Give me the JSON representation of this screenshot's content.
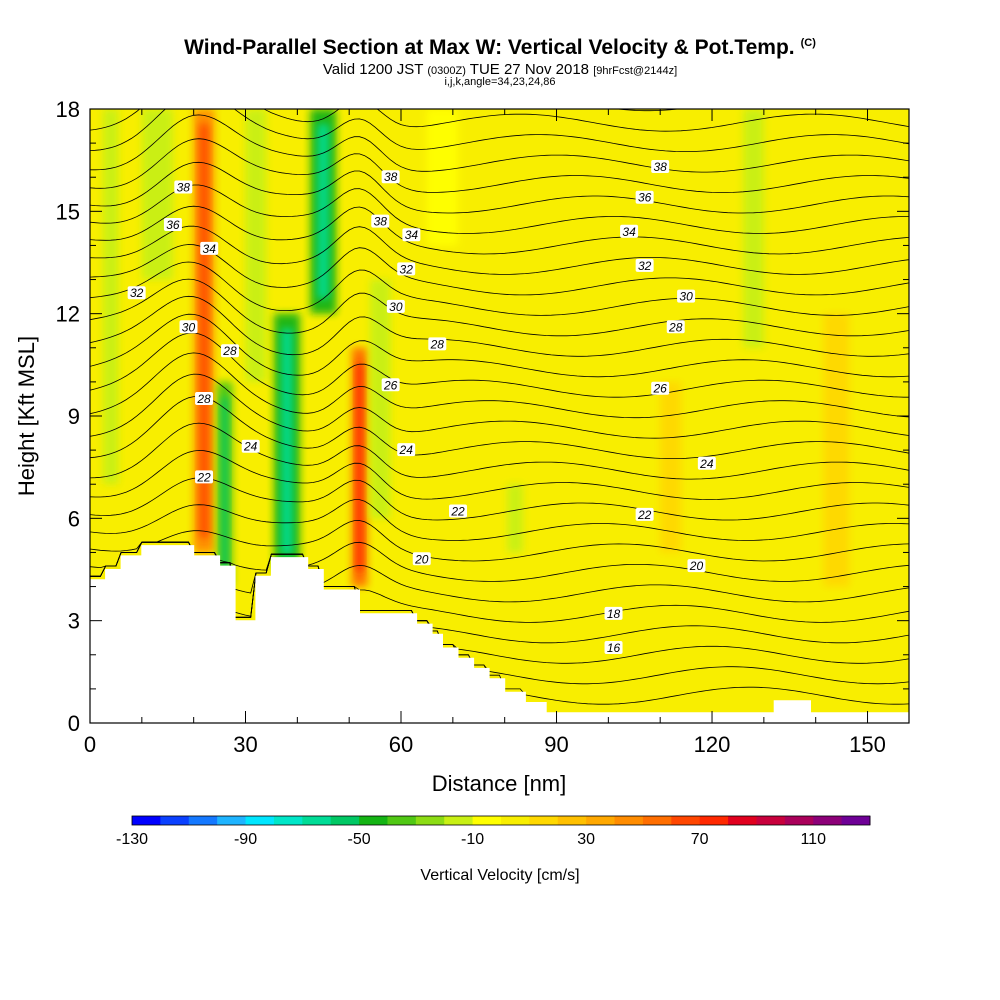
{
  "header": {
    "title": "Wind-Parallel Section at Max W: Vertical Velocity & Pot.Temp.",
    "copyright": "(C)",
    "valid_prefix": "Valid 1200 JST",
    "valid_utc": "(0300Z)",
    "valid_date": "TUE 27 Nov 2018",
    "forecast_info": "[9hrFcst@2144z]",
    "indices": "i,j,k,angle=34,23,24,86"
  },
  "chart_data": {
    "type": "heatmap",
    "title": "Wind-Parallel Section at Max W: Vertical Velocity & Pot.Temp.",
    "xlabel": "Distance [nm]",
    "ylabel": "Height [Kft MSL]",
    "xlim": [
      0,
      158
    ],
    "ylim": [
      0,
      18
    ],
    "x_ticks": [
      0,
      30,
      60,
      90,
      120,
      150
    ],
    "y_ticks": [
      0,
      3,
      6,
      9,
      12,
      15,
      18
    ],
    "grid": false,
    "terrain": [
      [
        0,
        4.2
      ],
      [
        3,
        4.2
      ],
      [
        3,
        4.5
      ],
      [
        6,
        4.5
      ],
      [
        6,
        4.9
      ],
      [
        10,
        4.9
      ],
      [
        10,
        5.2
      ],
      [
        20,
        5.2
      ],
      [
        20,
        4.9
      ],
      [
        25,
        4.9
      ],
      [
        25,
        4.6
      ],
      [
        28,
        4.6
      ],
      [
        28,
        3
      ],
      [
        32,
        3
      ],
      [
        32,
        4.3
      ],
      [
        35,
        4.3
      ],
      [
        35,
        4.85
      ],
      [
        42,
        4.85
      ],
      [
        42,
        4.5
      ],
      [
        45,
        4.5
      ],
      [
        45,
        3.9
      ],
      [
        52,
        3.9
      ],
      [
        52,
        3.2
      ],
      [
        63,
        3.2
      ],
      [
        63,
        2.9
      ],
      [
        66,
        2.9
      ],
      [
        66,
        2.6
      ],
      [
        68,
        2.6
      ],
      [
        68,
        2.2
      ],
      [
        71,
        2.2
      ],
      [
        71,
        1.9
      ],
      [
        74,
        1.9
      ],
      [
        74,
        1.6
      ],
      [
        77,
        1.6
      ],
      [
        77,
        1.3
      ],
      [
        80,
        1.3
      ],
      [
        80,
        0.9
      ],
      [
        84,
        0.9
      ],
      [
        84,
        0.6
      ],
      [
        88,
        0.6
      ],
      [
        88,
        0.3
      ],
      [
        132,
        0.3
      ],
      [
        132,
        0.65
      ],
      [
        139,
        0.65
      ],
      [
        139,
        0.3
      ],
      [
        158,
        0.3
      ]
    ],
    "vertical_velocity_features": [
      {
        "x": 4,
        "y0": 7,
        "y1": 18,
        "width": 3,
        "value": -20
      },
      {
        "x": 13,
        "y0": 13,
        "y1": 18,
        "width": 6,
        "value": -15
      },
      {
        "x": 22,
        "y0": 5,
        "y1": 18,
        "width": 4,
        "value": 40
      },
      {
        "x": 26,
        "y0": 4,
        "y1": 10,
        "width": 3,
        "value": -40
      },
      {
        "x": 32,
        "y0": 10,
        "y1": 18,
        "width": 4,
        "value": -20
      },
      {
        "x": 38,
        "y0": 4.5,
        "y1": 12,
        "width": 5,
        "value": -50
      },
      {
        "x": 45,
        "y0": 12,
        "y1": 18,
        "width": 5,
        "value": -50
      },
      {
        "x": 52,
        "y0": 4,
        "y1": 11,
        "width": 3,
        "value": 50
      },
      {
        "x": 56,
        "y0": 6,
        "y1": 13,
        "width": 4,
        "value": -20
      },
      {
        "x": 68,
        "y0": 14,
        "y1": 18,
        "width": 6,
        "value": -10
      },
      {
        "x": 82,
        "y0": 5,
        "y1": 7,
        "width": 3,
        "value": -20
      },
      {
        "x": 112,
        "y0": 5,
        "y1": 10,
        "width": 4,
        "value": 10
      },
      {
        "x": 128,
        "y0": 11,
        "y1": 18,
        "width": 4,
        "value": -20
      },
      {
        "x": 144,
        "y0": 4,
        "y1": 12,
        "width": 5,
        "value": 10
      }
    ],
    "theta_contours_labeled": [
      16,
      18,
      20,
      22,
      24,
      26,
      28,
      30,
      32,
      34,
      36,
      38
    ],
    "contour_labels": [
      {
        "text": "38",
        "x": 18,
        "y": 15.7
      },
      {
        "text": "36",
        "x": 16,
        "y": 14.6
      },
      {
        "text": "34",
        "x": 23,
        "y": 13.9
      },
      {
        "text": "32",
        "x": 9,
        "y": 12.6
      },
      {
        "text": "30",
        "x": 19,
        "y": 11.6
      },
      {
        "text": "28",
        "x": 27,
        "y": 10.9
      },
      {
        "text": "28",
        "x": 22,
        "y": 9.5
      },
      {
        "text": "24",
        "x": 31,
        "y": 8.1
      },
      {
        "text": "22",
        "x": 22,
        "y": 7.2
      },
      {
        "text": "38",
        "x": 58,
        "y": 16.0
      },
      {
        "text": "38",
        "x": 56,
        "y": 14.7
      },
      {
        "text": "34",
        "x": 62,
        "y": 14.3
      },
      {
        "text": "32",
        "x": 61,
        "y": 13.3
      },
      {
        "text": "30",
        "x": 59,
        "y": 12.2
      },
      {
        "text": "28",
        "x": 67,
        "y": 11.1
      },
      {
        "text": "26",
        "x": 58,
        "y": 9.9
      },
      {
        "text": "24",
        "x": 61,
        "y": 8.0
      },
      {
        "text": "22",
        "x": 71,
        "y": 6.2
      },
      {
        "text": "20",
        "x": 64,
        "y": 4.8
      },
      {
        "text": "38",
        "x": 110,
        "y": 16.3
      },
      {
        "text": "36",
        "x": 107,
        "y": 15.4
      },
      {
        "text": "34",
        "x": 104,
        "y": 14.4
      },
      {
        "text": "32",
        "x": 107,
        "y": 13.4
      },
      {
        "text": "30",
        "x": 115,
        "y": 12.5
      },
      {
        "text": "28",
        "x": 113,
        "y": 11.6
      },
      {
        "text": "26",
        "x": 110,
        "y": 9.8
      },
      {
        "text": "24",
        "x": 119,
        "y": 7.6
      },
      {
        "text": "22",
        "x": 107,
        "y": 6.1
      },
      {
        "text": "20",
        "x": 117,
        "y": 4.6
      },
      {
        "text": "18",
        "x": 101,
        "y": 3.2
      },
      {
        "text": "16",
        "x": 101,
        "y": 2.2
      }
    ]
  },
  "colorbar": {
    "label": "Vertical Velocity [cm/s]",
    "tick_labels": [
      "-130",
      "-90",
      "-50",
      "-10",
      "30",
      "70",
      "110"
    ],
    "colors": [
      "#0000ff",
      "#0a40ff",
      "#1478ff",
      "#1eb4ff",
      "#00e6ff",
      "#00e6c8",
      "#00dc96",
      "#00c864",
      "#14b414",
      "#50c814",
      "#8cdc14",
      "#c8f014",
      "#ffff00",
      "#f8ee00",
      "#ffd800",
      "#ffc000",
      "#ffa800",
      "#ff8c00",
      "#ff6e00",
      "#ff4600",
      "#ff2800",
      "#e1001e",
      "#c8003c",
      "#aa005a",
      "#8c0078",
      "#6e0096"
    ]
  }
}
